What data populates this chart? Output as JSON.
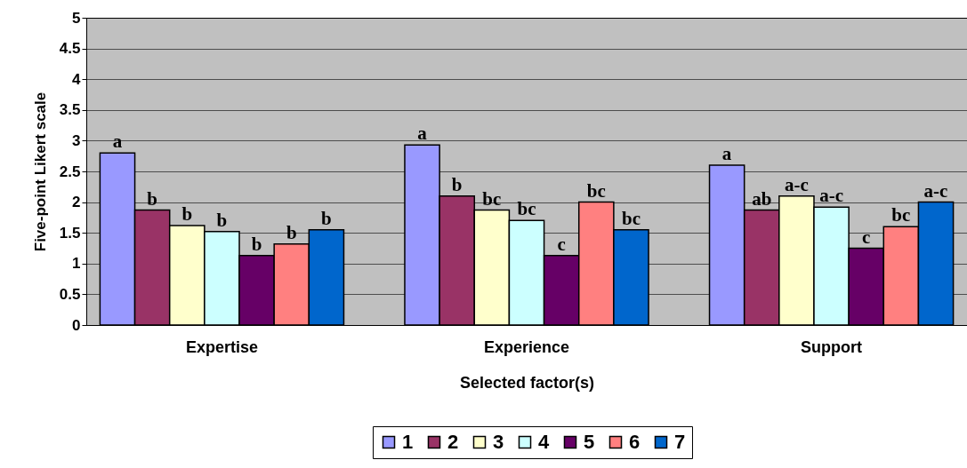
{
  "chart_data": {
    "type": "bar",
    "xlabel": "Selected factor(s)",
    "ylabel": "Five-point Likert scale",
    "categories": [
      "Expertise",
      "Experience",
      "Support"
    ],
    "series": [
      {
        "name": "1",
        "color": "#9999ff",
        "values": [
          2.8,
          2.93,
          2.6
        ],
        "value_labels": [
          "a",
          "a",
          "a"
        ]
      },
      {
        "name": "2",
        "color": "#993366",
        "values": [
          1.87,
          2.1,
          1.87
        ],
        "value_labels": [
          "b",
          "b",
          "ab"
        ]
      },
      {
        "name": "3",
        "color": "#ffffcc",
        "values": [
          1.62,
          1.87,
          2.1
        ],
        "value_labels": [
          "b",
          "bc",
          "a-c"
        ]
      },
      {
        "name": "4",
        "color": "#ccffff",
        "values": [
          1.52,
          1.7,
          1.92
        ],
        "value_labels": [
          "b",
          "bc",
          "a-c"
        ]
      },
      {
        "name": "5",
        "color": "#660066",
        "values": [
          1.13,
          1.13,
          1.25
        ],
        "value_labels": [
          "b",
          "c",
          "c"
        ]
      },
      {
        "name": "6",
        "color": "#ff8080",
        "values": [
          1.32,
          2.0,
          1.6
        ],
        "value_labels": [
          "b",
          "bc",
          "bc"
        ]
      },
      {
        "name": "7",
        "color": "#0066cc",
        "values": [
          1.55,
          1.55,
          2.0
        ],
        "value_labels": [
          "b",
          "bc",
          "a-c"
        ]
      }
    ],
    "ylim": [
      0,
      5
    ],
    "yticks": [
      0,
      0.5,
      1,
      1.5,
      2,
      2.5,
      3,
      3.5,
      4,
      4.5,
      5
    ],
    "grid": "y",
    "legend": "bottom"
  }
}
